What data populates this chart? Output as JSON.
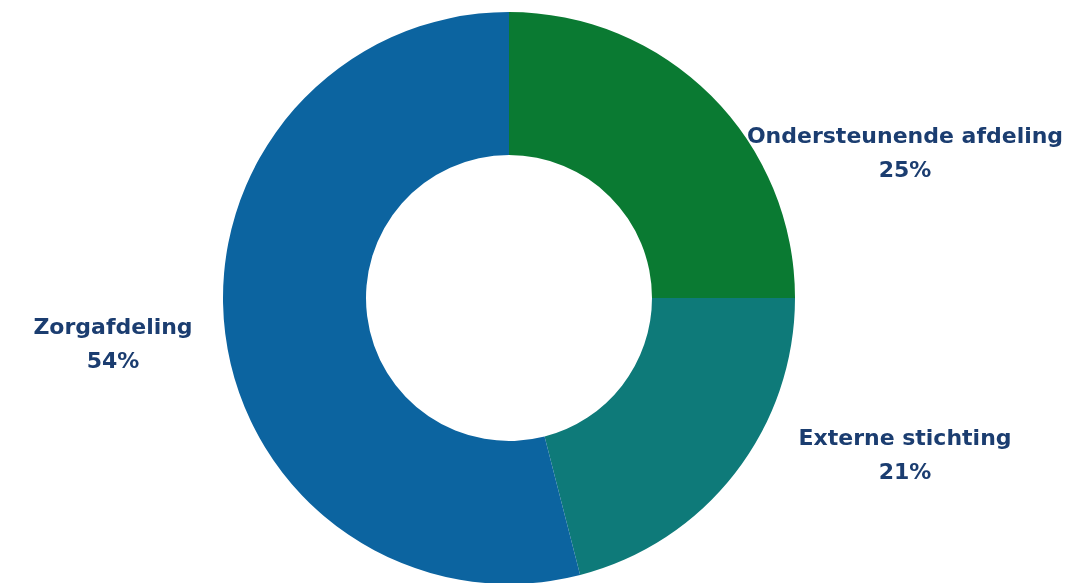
{
  "chart_data": {
    "type": "donut",
    "categories": [
      "Ondersteunende afdeling",
      "Externe stichting",
      "Zorgafdeling"
    ],
    "values": [
      25,
      21,
      54
    ],
    "value_labels": [
      "25%",
      "21%",
      "54%"
    ],
    "colors": [
      "#0a7a32",
      "#0e7a79",
      "#0c64a0"
    ]
  }
}
